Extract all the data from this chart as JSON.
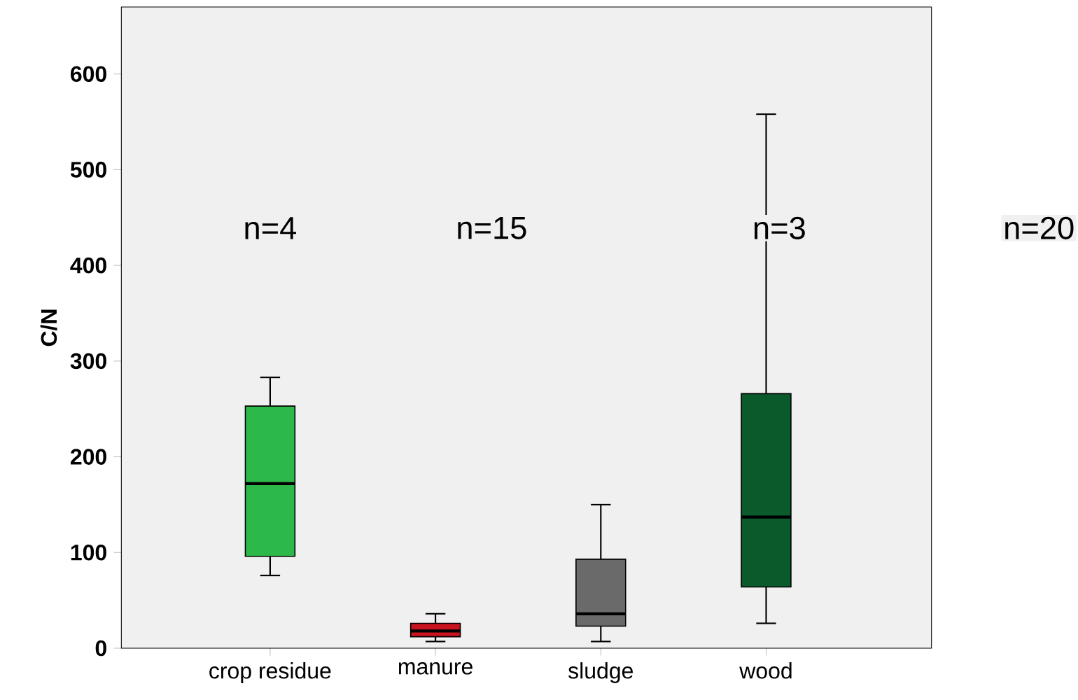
{
  "chart_data": {
    "type": "box",
    "ylabel": "C/N",
    "categories": [
      "crop residue",
      "manure",
      "sludge",
      "wood"
    ],
    "colors": [
      "#2db84a",
      "#c8141e",
      "#6a6a6a",
      "#0b5a2c"
    ],
    "boxes": [
      {
        "low": 76,
        "q1": 96,
        "median": 172,
        "q3": 253,
        "high": 283
      },
      {
        "low": 7,
        "q1": 12,
        "median": 18,
        "q3": 26,
        "high": 36
      },
      {
        "low": 7,
        "q1": 23,
        "median": 36,
        "q3": 93,
        "high": 150
      },
      {
        "low": 26,
        "q1": 64,
        "median": 137,
        "q3": 266,
        "high": 558
      }
    ],
    "ylim": [
      0,
      670
    ],
    "yticks": [
      0,
      100,
      200,
      300,
      400,
      500,
      600
    ],
    "grid": false,
    "annotations": [
      "n=4",
      "n=15",
      "n=3",
      "n=20"
    ]
  }
}
